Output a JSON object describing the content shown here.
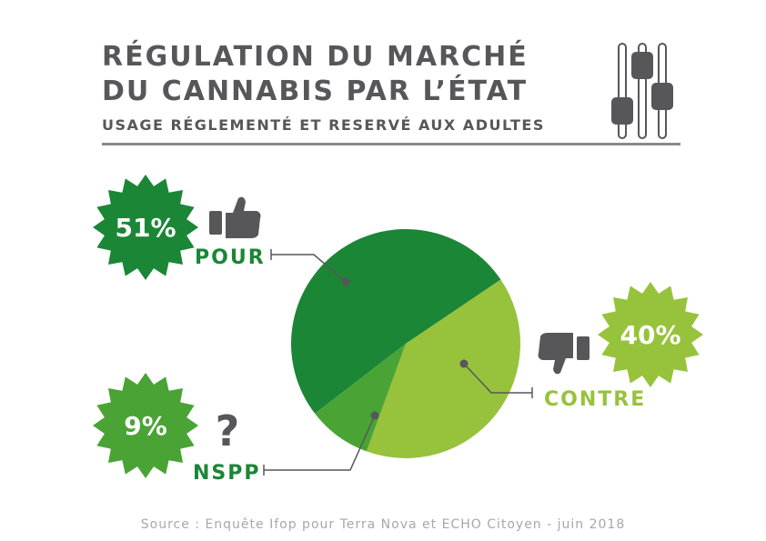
{
  "title": {
    "line1": "RÉGULATION DU MARCHÉ",
    "line2": "DU CANNABIS PAR L’ÉTAT",
    "subtitle": "USAGE RÉGLEMENTÉ ET RESERVÉ AUX ADULTES"
  },
  "source": "Source : Enquête Ifop pour Terra Nova et ECHO Citoyen - juin 2018",
  "icons": {
    "header": "sliders-icon",
    "pour": "thumbs-up-icon",
    "contre": "thumbs-down-icon",
    "nspp": "question-mark-icon"
  },
  "colors": {
    "pour": "#1b8636",
    "contre": "#97c23c",
    "nspp": "#4aa335",
    "text": "#57575a"
  },
  "chart_data": {
    "type": "pie",
    "title": "RÉGULATION DU MARCHÉ DU CANNABIS PAR L’ÉTAT",
    "subtitle": "USAGE RÉGLEMENTÉ ET RESERVÉ AUX ADULTES",
    "slices": [
      {
        "label": "POUR",
        "value": 51,
        "display": "51%"
      },
      {
        "label": "CONTRE",
        "value": 40,
        "display": "40%"
      },
      {
        "label": "NSPP",
        "value": 9,
        "display": "9%"
      }
    ]
  }
}
